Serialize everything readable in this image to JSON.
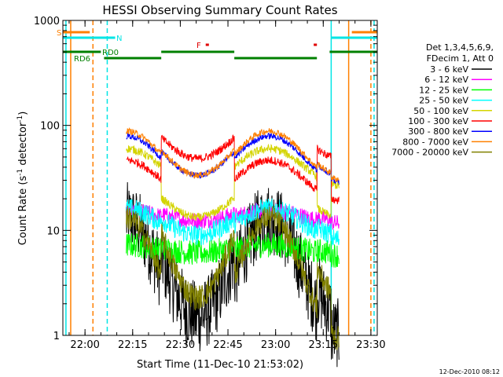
{
  "chart_data": {
    "type": "line",
    "title": "HESSI Observing Summary Count Rates",
    "ylabel_main": "Count Rate (s",
    "ylabel_sup1": "-1",
    "ylabel_mid": " detector",
    "ylabel_sup2": "-1",
    "ylabel_end": ")",
    "xlabel": "Start Time (11-Dec-10 21:53:02)",
    "yscale": "log",
    "ylim": [
      1,
      1000
    ],
    "xlim": [
      "21:53:02",
      "23:32:00"
    ],
    "x_ticks": [
      "22:00",
      "22:15",
      "22:30",
      "22:45",
      "23:00",
      "23:15",
      "23:30"
    ],
    "y_ticks": [
      "1",
      "10",
      "100",
      "1000"
    ],
    "legend_header": [
      "Det 1,3,4,5,6,9,",
      "FDecim 1, Att 0"
    ],
    "legend_placement": "right",
    "timestamp": "12-Dec-2010 08:12",
    "flag_labels": {
      "saa": "S",
      "night": "N",
      "f": "F",
      "rd0": "RD0",
      "rd6": "RD6"
    },
    "gaps": [
      [
        "21:53:02",
        "22:13:00"
      ],
      [
        "23:20:00",
        "23:32:00"
      ]
    ],
    "attenuator_jumps": [
      "22:24:00",
      "22:47:00",
      "23:13:00",
      "23:17:30"
    ],
    "vlines": [
      {
        "t": "21:54:00",
        "color": "#00e5e5",
        "style": "solid"
      },
      {
        "t": "21:55:30",
        "color": "#ff8000",
        "style": "solid"
      },
      {
        "t": "22:02:30",
        "color": "#ff8000",
        "style": "dashed"
      },
      {
        "t": "22:07:00",
        "color": "#00e5e5",
        "style": "dashed"
      },
      {
        "t": "23:17:30",
        "color": "#00e5e5",
        "style": "solid"
      },
      {
        "t": "23:23:00",
        "color": "#ff8000",
        "style": "solid"
      },
      {
        "t": "23:30:00",
        "color": "#ff8000",
        "style": "dashed"
      },
      {
        "t": "23:31:00",
        "color": "#00e5e5",
        "style": "dashed"
      }
    ],
    "flag_bars": [
      {
        "label_key": "saa",
        "color": "#ff8000",
        "y": 41,
        "segments": [
          [
            "21:53:02",
            "22:01:30"
          ],
          [
            "23:24:00",
            "23:32:00"
          ]
        ]
      },
      {
        "label_key": "night",
        "color": "#00e5e5",
        "y": 48,
        "segments": [
          [
            "21:53:02",
            "22:09:30"
          ],
          [
            "23:17:30",
            "23:32:00"
          ]
        ]
      },
      {
        "label_key": "f",
        "color": "#e00000",
        "y": 57,
        "segments": [
          [
            "22:38:00",
            "22:39:00"
          ],
          [
            "23:12:00",
            "23:13:00"
          ]
        ]
      },
      {
        "label_key": "rd0",
        "color": "#008000",
        "y": 66,
        "segments": [
          [
            "21:53:02",
            "22:05:00"
          ],
          [
            "22:24:00",
            "22:47:00"
          ],
          [
            "23:17:00",
            "23:32:00"
          ]
        ]
      },
      {
        "label_key": "rd6",
        "color": "#008000",
        "y": 74,
        "segments": [
          [
            "22:06:00",
            "22:24:00"
          ],
          [
            "22:47:00",
            "23:13:00"
          ]
        ]
      }
    ],
    "series": [
      {
        "name": "3 - 6 keV",
        "color": "#000000",
        "base": 3.6,
        "amp": 2.6,
        "noise": 0.35,
        "off_factor": 1.5
      },
      {
        "name": "6 - 12 keV",
        "color": "#ff00ff",
        "base": 13.5,
        "amp": 0.15,
        "noise": 0.08,
        "off_factor": 1.05
      },
      {
        "name": "12 - 25 keV",
        "color": "#00ff00",
        "base": 6.5,
        "amp": 0.12,
        "noise": 0.12,
        "off_factor": 1.05
      },
      {
        "name": "25 - 50 keV",
        "color": "#00ffff",
        "base": 11.5,
        "amp": 0.4,
        "noise": 0.1,
        "off_factor": 1.1
      },
      {
        "name": "50 - 100 keV",
        "color": "#d4d400",
        "base": 40,
        "amp": 0.5,
        "noise": 0.04,
        "off_factor": 0.5
      },
      {
        "name": "100 - 300 keV",
        "color": "#ff0000",
        "base": 30,
        "amp": 0.55,
        "noise": 0.04,
        "off_factor": 2.5
      },
      {
        "name": "300 - 800 keV",
        "color": "#0000ff",
        "base": 48,
        "amp": 0.65,
        "noise": 0.03,
        "off_factor": 1.15
      },
      {
        "name": "800 - 7000 keV",
        "color": "#ff8000",
        "base": 52,
        "amp": 0.7,
        "noise": 0.03,
        "off_factor": 1.1
      },
      {
        "name": "7000 - 20000 keV",
        "color": "#808000",
        "base": 3.5,
        "amp": 2.8,
        "noise": 0.12,
        "off_factor": 2.5
      }
    ]
  }
}
